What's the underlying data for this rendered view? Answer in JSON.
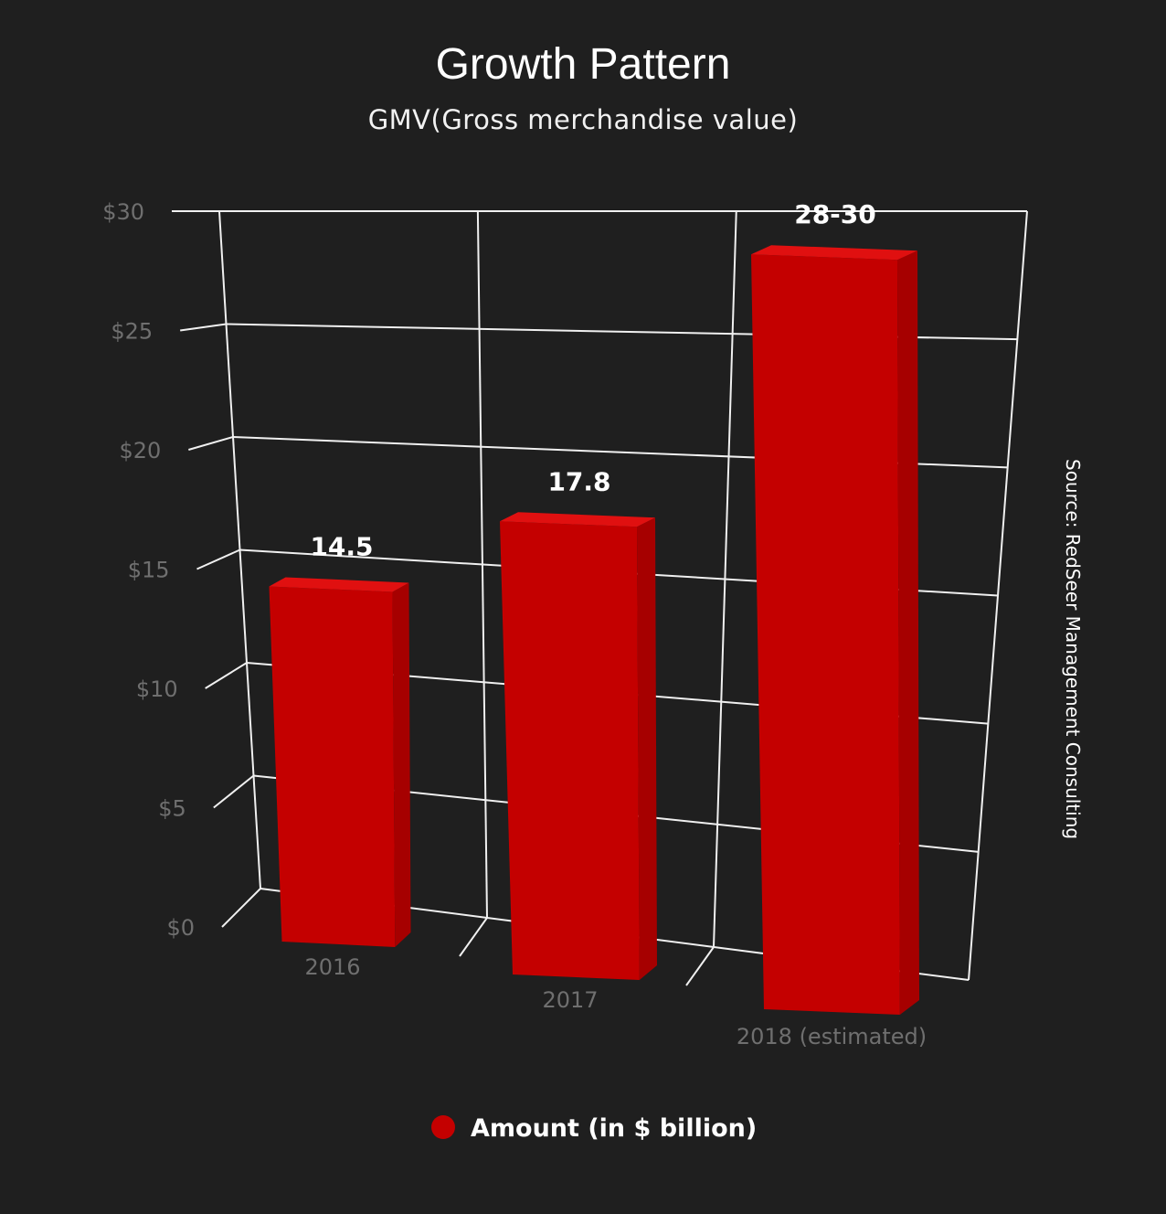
{
  "chart_data": {
    "type": "bar",
    "title": "Growth Pattern",
    "subtitle": "GMV(Gross merchandise value)",
    "categories": [
      "2016",
      "2017",
      "2018 (estimated)"
    ],
    "series": [
      {
        "name": "Amount (in $ billion)",
        "values": [
          14.5,
          17.8,
          29
        ],
        "data_labels": [
          "14.5",
          "17.8",
          "28-30"
        ],
        "color": "#c40000"
      }
    ],
    "ylim": [
      0,
      30
    ],
    "yticks": [
      0,
      5,
      10,
      15,
      20,
      25,
      30
    ],
    "ytick_labels": [
      "$0",
      "$5",
      "$10",
      "$15",
      "$20",
      "$25",
      "$30"
    ],
    "grid": true,
    "legend_position": "bottom-center",
    "three_d": true,
    "source": "Source: RedSeer Management Consulting"
  }
}
